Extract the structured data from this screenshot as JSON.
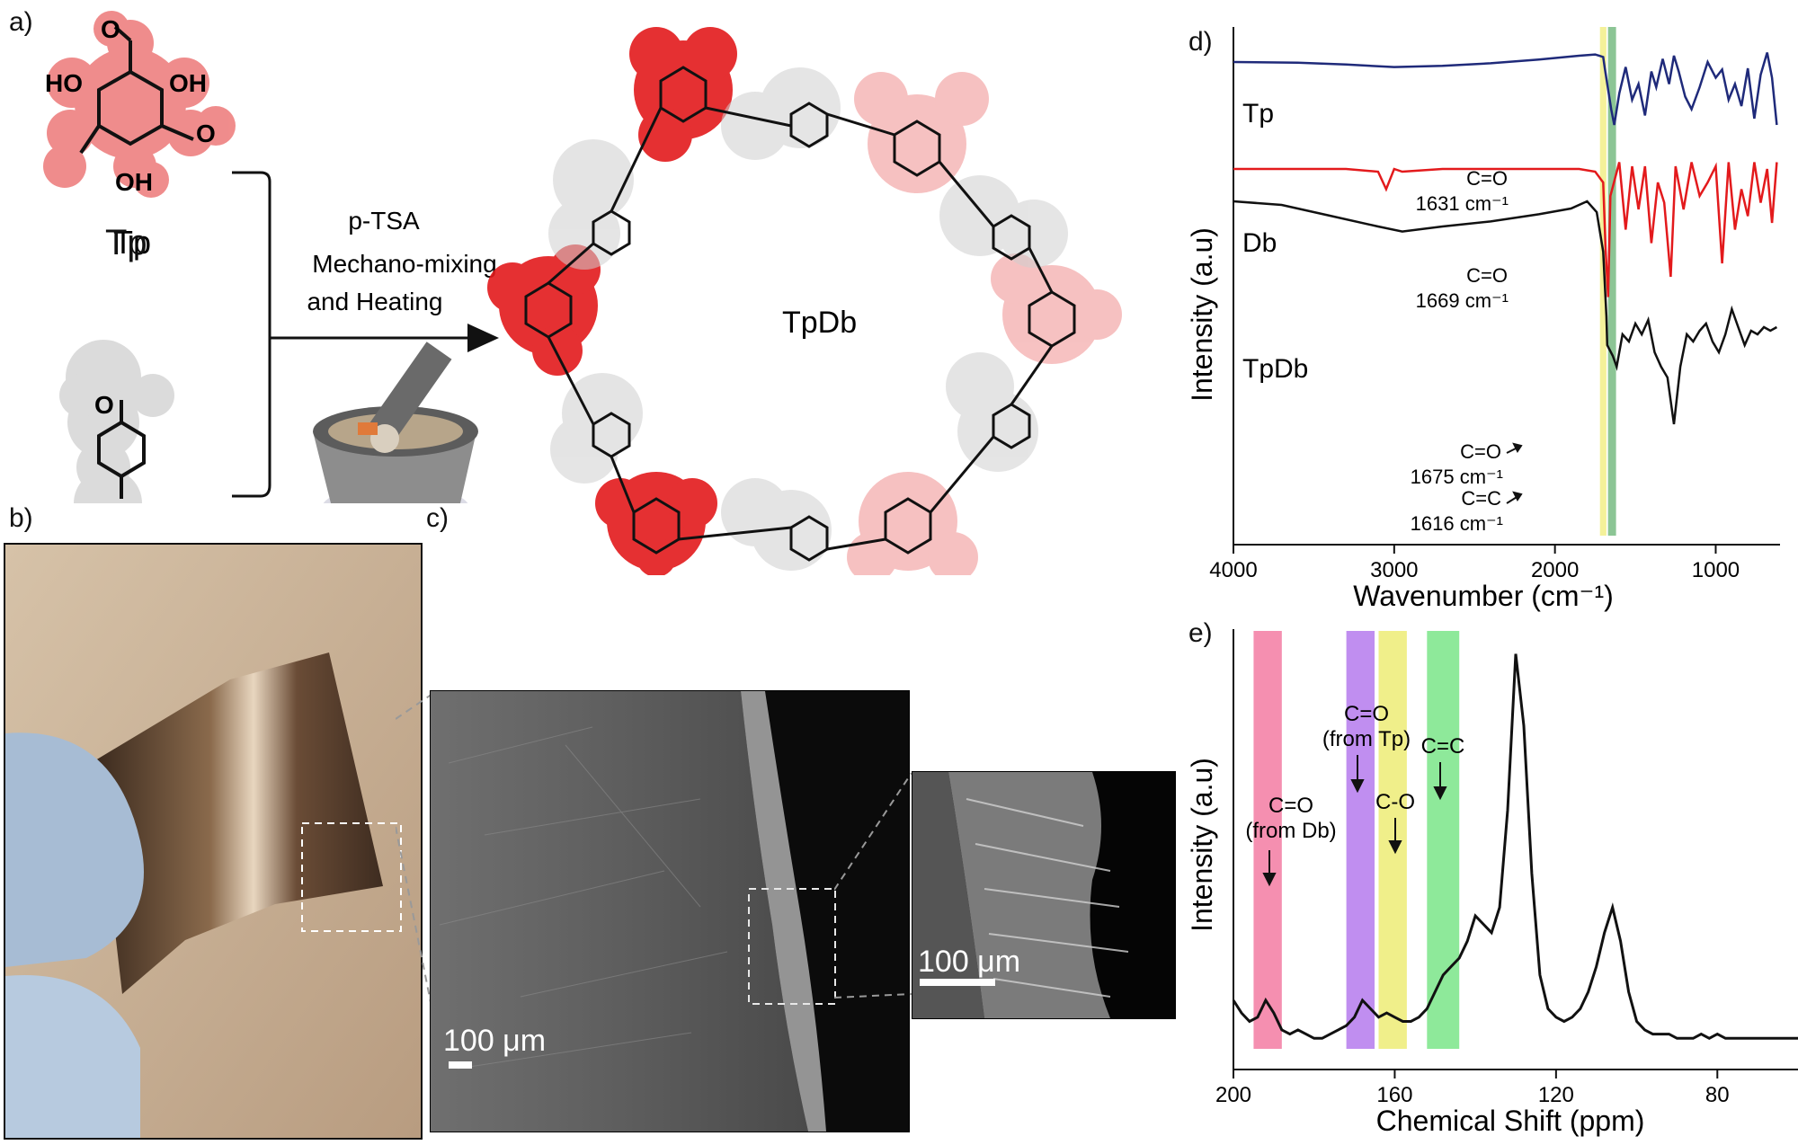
{
  "panels": {
    "a": "a)",
    "b": "b)",
    "c": "c)",
    "d": "d)",
    "e": "e)"
  },
  "scheme": {
    "monomer1": "Tp",
    "monomer2": "Db",
    "product": "TpDb",
    "conditions": [
      "p-TSA",
      "Mechano-mixing",
      "and Heating"
    ],
    "oh_label": "OH",
    "ho_label": "HO",
    "o_label": "O"
  },
  "sem": {
    "scale_main": "100 μm",
    "scale_inset": "100 μm"
  },
  "colors": {
    "tp_blob": "#e8504f",
    "tp_blob_light": "#f2a8a4",
    "db_blob": "#cfcfcf",
    "tp_line": "#1f2a7a",
    "db_line": "#e31a1c",
    "tpdb_line": "#111111",
    "band_yellow": "#f3ef8f",
    "band_green": "#7fbf8a",
    "nmr_pink": "#f58fb0",
    "nmr_purple": "#c08ef0",
    "nmr_yellow": "#f0ef8a",
    "nmr_green": "#8ee99a"
  },
  "chart_data": [
    {
      "type": "line",
      "panel": "d)",
      "xlabel": "Wavenumber (cm⁻¹)",
      "ylabel": "Intensity (a.u)",
      "xlim": [
        4000,
        600
      ],
      "x_ticks": [
        4000,
        3000,
        2000,
        1000
      ],
      "x_tick_labels": [
        "4000",
        "3000",
        "2000",
        "1000"
      ],
      "series": [
        {
          "name": "Tp",
          "color": "#1f2a7a",
          "x": [
            4000,
            3600,
            3300,
            3000,
            2700,
            2400,
            2100,
            1850,
            1750,
            1700,
            1690,
            1650,
            1631,
            1600,
            1560,
            1520,
            1480,
            1440,
            1400,
            1370,
            1330,
            1290,
            1260,
            1230,
            1190,
            1150,
            1100,
            1050,
            1000,
            960,
            920,
            880,
            840,
            800,
            760,
            720,
            680,
            650,
            620
          ],
          "y": [
            0.3,
            0.29,
            0.26,
            0.22,
            0.24,
            0.28,
            0.34,
            0.4,
            0.42,
            0.38,
            0.2,
            -0.45,
            -0.7,
            -0.2,
            0.22,
            -0.3,
            -0.05,
            -0.55,
            0.15,
            -0.1,
            0.35,
            -0.05,
            0.4,
            0.15,
            -0.25,
            -0.45,
            -0.1,
            0.3,
            0.05,
            0.18,
            -0.3,
            -0.05,
            -0.4,
            0.2,
            -0.6,
            0.1,
            0.45,
            0.05,
            -0.7
          ]
        },
        {
          "name": "Db",
          "color": "#e31a1c",
          "x": [
            4000,
            3600,
            3300,
            3100,
            3050,
            3000,
            2950,
            2700,
            2400,
            2100,
            1850,
            1750,
            1700,
            1685,
            1669,
            1655,
            1600,
            1560,
            1520,
            1480,
            1440,
            1400,
            1360,
            1320,
            1280,
            1250,
            1200,
            1150,
            1100,
            1050,
            1000,
            960,
            920,
            880,
            840,
            800,
            760,
            720,
            680,
            650,
            620
          ],
          "y": [
            0.0,
            0.0,
            0.0,
            -0.02,
            -0.15,
            0.0,
            -0.02,
            0.0,
            0.0,
            0.0,
            0.0,
            -0.02,
            -0.1,
            -0.6,
            -0.95,
            -0.2,
            0.05,
            -0.45,
            0.02,
            -0.3,
            0.02,
            -0.55,
            -0.1,
            -0.25,
            -0.8,
            0.02,
            -0.3,
            0.05,
            -0.2,
            -0.1,
            0.02,
            -0.7,
            0.05,
            -0.45,
            -0.15,
            -0.35,
            0.05,
            -0.25,
            0.0,
            -0.4,
            0.05
          ]
        },
        {
          "name": "TpDb",
          "color": "#111111",
          "x": [
            4000,
            3700,
            3400,
            3100,
            2950,
            2700,
            2400,
            2100,
            1900,
            1800,
            1740,
            1700,
            1680,
            1675,
            1640,
            1616,
            1580,
            1540,
            1500,
            1460,
            1420,
            1380,
            1340,
            1300,
            1260,
            1220,
            1180,
            1140,
            1100,
            1060,
            1020,
            980,
            940,
            900,
            860,
            820,
            780,
            740,
            700,
            660,
            620
          ],
          "y": [
            0.9,
            0.85,
            0.7,
            0.55,
            0.48,
            0.55,
            0.62,
            0.72,
            0.8,
            0.9,
            0.75,
            0.2,
            -0.7,
            -1.1,
            -1.25,
            -1.4,
            -0.95,
            -1.05,
            -0.8,
            -0.95,
            -0.75,
            -1.2,
            -1.4,
            -1.55,
            -2.2,
            -1.4,
            -0.95,
            -1.05,
            -0.9,
            -0.8,
            -1.05,
            -1.2,
            -0.95,
            -0.6,
            -0.85,
            -1.1,
            -0.9,
            -0.95,
            -0.85,
            -0.9,
            -0.85
          ]
        }
      ],
      "bands": [
        {
          "from": 1720,
          "to": 1680,
          "color": "#f3ef8f"
        },
        {
          "from": 1670,
          "to": 1620,
          "color": "#7fbf8a"
        }
      ],
      "annotations": [
        {
          "text": "C=O",
          "sub": "1631 cm⁻¹"
        },
        {
          "text": "C=O",
          "sub": "1669 cm⁻¹"
        },
        {
          "text": "C=O",
          "sub": "1675 cm⁻¹"
        },
        {
          "text": "C=C",
          "sub": "1616 cm⁻¹"
        }
      ],
      "series_labels": [
        "Tp",
        "Db",
        "TpDb"
      ]
    },
    {
      "type": "line",
      "panel": "e)",
      "xlabel": "Chemical Shift (ppm)",
      "ylabel": "Intensity (a.u)",
      "xlim": [
        200,
        60
      ],
      "x_ticks": [
        200,
        160,
        120,
        80
      ],
      "x_tick_labels": [
        "200",
        "160",
        "120",
        "80"
      ],
      "series": [
        {
          "name": "",
          "color": "#111111",
          "x": [
            200,
            198,
            196,
            194,
            192,
            190,
            188,
            186,
            184,
            182,
            180,
            178,
            176,
            174,
            172,
            170,
            168,
            166,
            164,
            162,
            160,
            158,
            156,
            154,
            152,
            150,
            148,
            146,
            144,
            142,
            140,
            138,
            136,
            134,
            132,
            130,
            128,
            126,
            124,
            122,
            120,
            118,
            116,
            114,
            112,
            110,
            108,
            106,
            104,
            102,
            100,
            98,
            96,
            94,
            92,
            90,
            88,
            86,
            84,
            82,
            80,
            78,
            76,
            74,
            72,
            70,
            68,
            66,
            64,
            62,
            60
          ],
          "y": [
            0.1,
            0.07,
            0.05,
            0.06,
            0.1,
            0.07,
            0.03,
            0.02,
            0.03,
            0.02,
            0.01,
            0.01,
            0.02,
            0.03,
            0.04,
            0.06,
            0.1,
            0.08,
            0.06,
            0.07,
            0.06,
            0.05,
            0.05,
            0.06,
            0.08,
            0.12,
            0.16,
            0.18,
            0.2,
            0.24,
            0.3,
            0.28,
            0.26,
            0.32,
            0.55,
            0.92,
            0.75,
            0.4,
            0.16,
            0.08,
            0.06,
            0.05,
            0.06,
            0.08,
            0.12,
            0.18,
            0.26,
            0.32,
            0.24,
            0.12,
            0.05,
            0.03,
            0.02,
            0.02,
            0.02,
            0.01,
            0.01,
            0.01,
            0.02,
            0.01,
            0.02,
            0.01,
            0.01,
            0.01,
            0.01,
            0.01,
            0.01,
            0.01,
            0.01,
            0.01,
            0.01
          ]
        }
      ],
      "bands": [
        {
          "from": 195,
          "to": 188,
          "color": "#f58fb0"
        },
        {
          "from": 172,
          "to": 165,
          "color": "#c08ef0"
        },
        {
          "from": 164,
          "to": 157,
          "color": "#f0ef8a"
        },
        {
          "from": 152,
          "to": 144,
          "color": "#8ee99a"
        }
      ],
      "annotations": [
        {
          "text": "C=O",
          "sub": "(from Db)"
        },
        {
          "text": "C=O",
          "sub": "(from Tp)"
        },
        {
          "text": "C-O",
          "sub": ""
        },
        {
          "text": "C=C",
          "sub": ""
        }
      ]
    }
  ]
}
